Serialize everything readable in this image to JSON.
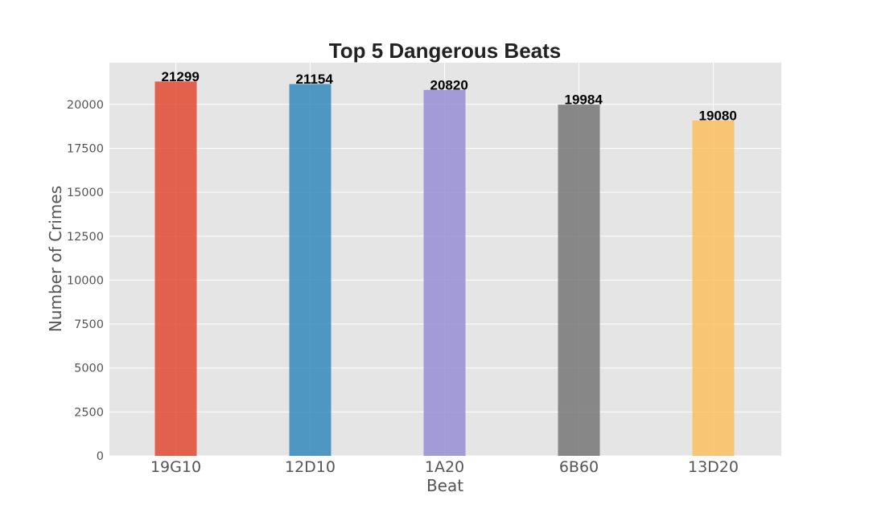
{
  "chart_data": {
    "type": "bar",
    "title": "Top 5 Dangerous Beats",
    "xlabel": "Beat",
    "ylabel": "Number of Crimes",
    "categories": [
      "19G10",
      "12D10",
      "1A20",
      "6B60",
      "13D20"
    ],
    "values": [
      21299,
      21154,
      20820,
      19984,
      19080
    ],
    "data_labels": [
      "21299",
      "21154",
      "20820",
      "19984",
      "19080"
    ],
    "bar_colors": [
      "#E24A33",
      "#348ABD",
      "#988ED5",
      "#777777",
      "#FBC15E"
    ],
    "ylim": [
      0,
      22370
    ],
    "yticks": [
      0,
      2500,
      5000,
      7500,
      10000,
      12500,
      15000,
      17500,
      20000
    ],
    "ytick_labels": [
      "0",
      "2500",
      "5000",
      "7500",
      "10000",
      "12500",
      "15000",
      "17500",
      "20000"
    ],
    "grid": true,
    "style": {
      "plot_background": "#E5E5E5",
      "grid_color": "#FFFFFF"
    }
  }
}
